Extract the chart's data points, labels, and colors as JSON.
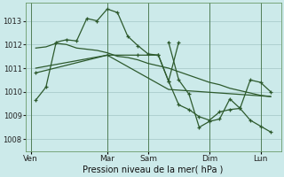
{
  "background_color": "#cceaea",
  "grid_color": "#aacccc",
  "line_color": "#2d5a2d",
  "title": "Pression niveau de la mer( hPa )",
  "ylim": [
    1007.5,
    1013.75
  ],
  "yticks": [
    1008,
    1009,
    1010,
    1011,
    1012,
    1013
  ],
  "day_labels": [
    "Ven",
    "Mar",
    "Sam",
    "Dim",
    "Lun"
  ],
  "day_positions": [
    0.5,
    8,
    12,
    18,
    23
  ],
  "xlim": [
    0,
    25
  ],
  "line1_x": [
    1,
    2,
    3,
    4,
    5,
    6,
    7,
    8,
    9,
    10,
    11,
    12,
    13,
    14,
    15
  ],
  "line1_y": [
    1009.65,
    1010.2,
    1012.1,
    1012.2,
    1012.15,
    1013.1,
    1013.0,
    1013.5,
    1013.35,
    1012.35,
    1011.95,
    1011.6,
    1011.55,
    1010.45,
    1012.1
  ],
  "line2_x": [
    1,
    2,
    3,
    4,
    5,
    6,
    7,
    8,
    9,
    10,
    11,
    12,
    13,
    14,
    15,
    16,
    17,
    18,
    19,
    20,
    21,
    22,
    23,
    24
  ],
  "line2_y": [
    1011.85,
    1011.9,
    1012.05,
    1012.0,
    1011.85,
    1011.8,
    1011.75,
    1011.65,
    1011.5,
    1011.45,
    1011.35,
    1011.2,
    1011.1,
    1011.0,
    1010.85,
    1010.7,
    1010.55,
    1010.4,
    1010.3,
    1010.15,
    1010.05,
    1009.95,
    1009.85,
    1009.8
  ],
  "line3_x": [
    1,
    8,
    11,
    13,
    14,
    15,
    16,
    17,
    18,
    19,
    20,
    21,
    22,
    23,
    24
  ],
  "line3_y": [
    1010.8,
    1011.55,
    1011.55,
    1011.55,
    1010.45,
    1009.45,
    1009.25,
    1008.95,
    1008.8,
    1009.15,
    1009.25,
    1009.3,
    1010.5,
    1010.4,
    1010.0
  ],
  "line4_x": [
    1,
    8,
    14,
    24
  ],
  "line4_y": [
    1011.0,
    1011.55,
    1010.1,
    1009.8
  ],
  "line5_x": [
    14,
    15,
    16,
    17,
    18,
    19,
    20,
    21,
    22,
    23,
    24
  ],
  "line5_y": [
    1012.1,
    1010.5,
    1009.9,
    1008.5,
    1008.75,
    1008.85,
    1009.7,
    1009.3,
    1008.8,
    1008.55,
    1008.3
  ]
}
